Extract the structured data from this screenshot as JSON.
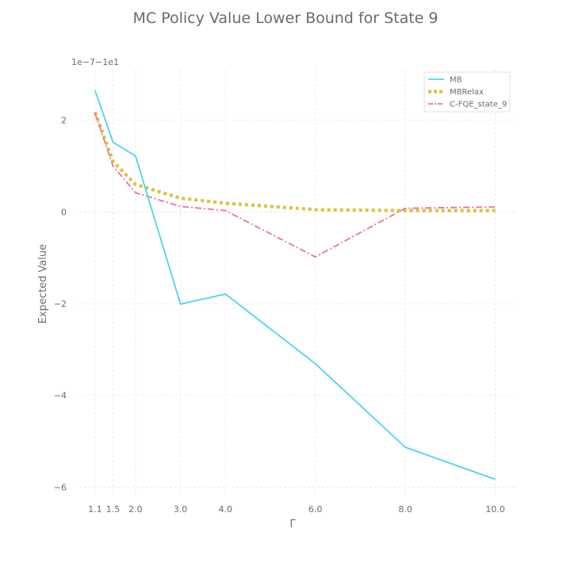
{
  "chart_data": {
    "type": "line",
    "title": "MC Policy Value Lower Bound for State 9",
    "xlabel": "Γ",
    "ylabel": "Expected Value",
    "offset_text": "1e−7−1e1",
    "x": [
      1.1,
      1.5,
      2.0,
      3.0,
      4.0,
      6.0,
      8.0,
      10.0
    ],
    "x_tick_values": [
      1.1,
      1.5,
      2.0,
      3.0,
      4.0,
      6.0,
      8.0,
      10.0
    ],
    "x_tick_labels": [
      "1.1",
      "1.5",
      "2.0",
      "3.0",
      "4.0",
      "6.0",
      "8.0",
      "10.0"
    ],
    "y_tick_values": [
      -6,
      -4,
      -2,
      0,
      2
    ],
    "y_tick_labels": [
      "−6",
      "−4",
      "−2",
      "0",
      "2"
    ],
    "xlim": [
      0.75,
      10.45
    ],
    "ylim": [
      -6.2,
      3.1
    ],
    "grid": true,
    "legend_position": "top-right",
    "series": [
      {
        "name": "MB",
        "color": "#4fd3f0",
        "style": "solid",
        "values": [
          2.65,
          1.52,
          1.22,
          -2.01,
          -1.79,
          -3.31,
          -5.13,
          -5.83
        ]
      },
      {
        "name": "MBRelax",
        "color": "#d9c43c",
        "style": "dotted",
        "values": [
          2.18,
          1.1,
          0.6,
          0.3,
          0.19,
          0.05,
          0.03,
          0.03
        ]
      },
      {
        "name": "C-FQE_state_9",
        "color": "#ec6fb0",
        "style": "dashdot",
        "values": [
          2.15,
          1.0,
          0.42,
          0.12,
          0.03,
          -0.98,
          0.08,
          0.11
        ]
      }
    ]
  }
}
